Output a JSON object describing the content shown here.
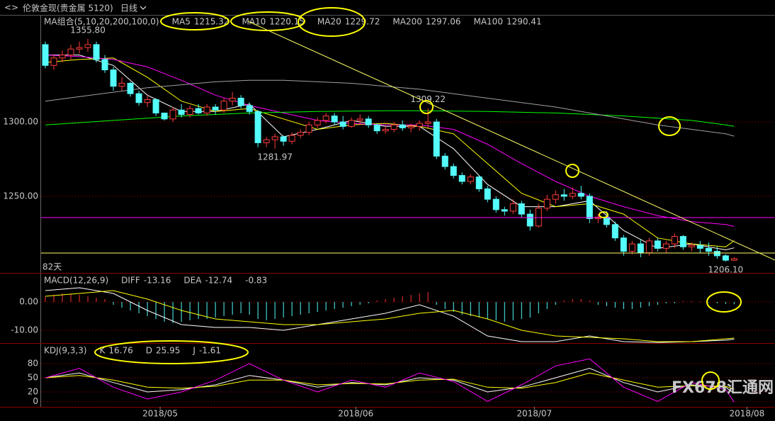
{
  "header": {
    "symbol": "伦敦金现(贵金属 5120)",
    "period": "日线"
  },
  "watermark": "FX678汇通网",
  "chart_data": [
    {
      "type": "candlestick",
      "indicator": "MA组合(5,10,20,200,100,0)",
      "period_label": "82天",
      "up_color": "#ff3c3c",
      "down_color": "#54fcfc",
      "xlim": [
        -0.5,
        85.8
      ],
      "ylim": [
        1198.5,
        1371.5
      ],
      "yticks": [
        {
          "value": 1300,
          "label": "1300.00"
        },
        {
          "value": 1250,
          "label": "1250.00"
        }
      ],
      "grid": true,
      "open": [
        1352,
        1338,
        1343,
        1345,
        1349,
        1350,
        1352,
        1342,
        1335,
        1324,
        1326,
        1319,
        1313,
        1315,
        1306,
        1302,
        1308,
        1305,
        1309,
        1306,
        1310,
        1308,
        1314,
        1316,
        1311,
        1307,
        1286,
        1288,
        1290,
        1287,
        1291,
        1293,
        1298,
        1301,
        1304,
        1300,
        1297,
        1301,
        1302,
        1298,
        1294,
        1295,
        1298,
        1296,
        1297,
        1299,
        1300,
        1277,
        1270,
        1264,
        1260,
        1263,
        1255,
        1248,
        1241,
        1240,
        1245,
        1238,
        1230,
        1242,
        1248,
        1251,
        1250,
        1252,
        1250,
        1235,
        1236,
        1231,
        1222,
        1213,
        1218,
        1212,
        1220,
        1215,
        1218,
        1223,
        1216,
        1217,
        1215,
        1213,
        1210,
        1207
      ],
      "high": [
        1354,
        1345,
        1348,
        1352,
        1354,
        1355.8,
        1354,
        1345,
        1337,
        1330,
        1327,
        1321,
        1318,
        1316,
        1306,
        1310,
        1312,
        1311,
        1312,
        1312,
        1312,
        1316,
        1320,
        1318,
        1313,
        1308,
        1290,
        1292,
        1291,
        1293,
        1295,
        1300,
        1303,
        1306,
        1306,
        1304,
        1303,
        1305,
        1304,
        1299,
        1297,
        1300,
        1301,
        1299,
        1301,
        1309.22,
        1302,
        1279,
        1272,
        1266,
        1265,
        1264,
        1257,
        1250,
        1243,
        1248,
        1247,
        1241,
        1245,
        1251,
        1254,
        1255,
        1256,
        1257,
        1252,
        1238,
        1240,
        1233,
        1224,
        1220,
        1221,
        1222,
        1222,
        1220,
        1225,
        1224,
        1219,
        1220,
        1219,
        1216,
        1211,
        1209
      ],
      "low": [
        1336,
        1335,
        1340,
        1342,
        1346,
        1347,
        1340,
        1333,
        1321,
        1321,
        1317,
        1311,
        1310,
        1304,
        1301,
        1300,
        1303,
        1303,
        1305,
        1304,
        1305,
        1306,
        1311,
        1309,
        1305,
        1283,
        1283,
        1281.97,
        1284,
        1285,
        1289,
        1291,
        1296,
        1299,
        1298,
        1295,
        1296,
        1298,
        1296,
        1292,
        1292,
        1293,
        1294,
        1293,
        1294,
        1296,
        1275,
        1268,
        1262,
        1258,
        1258,
        1253,
        1246,
        1239,
        1237,
        1238,
        1236,
        1227,
        1229,
        1240,
        1245,
        1247,
        1248,
        1248,
        1232,
        1232,
        1229,
        1220,
        1210,
        1211,
        1209,
        1210,
        1213,
        1212,
        1215,
        1214,
        1213,
        1212,
        1210,
        1208,
        1206.1,
        1206.5
      ],
      "close": [
        1338,
        1343,
        1345,
        1349,
        1350,
        1352,
        1342,
        1335,
        1324,
        1326,
        1319,
        1313,
        1315,
        1306,
        1302,
        1308,
        1305,
        1309,
        1306,
        1310,
        1308,
        1314,
        1316,
        1311,
        1307,
        1286,
        1288,
        1290,
        1287,
        1291,
        1293,
        1298,
        1301,
        1304,
        1300,
        1297,
        1301,
        1302,
        1298,
        1294,
        1295,
        1298,
        1296,
        1297,
        1299,
        1300,
        1277,
        1270,
        1264,
        1260,
        1263,
        1255,
        1248,
        1241,
        1240,
        1245,
        1238,
        1230,
        1242,
        1248,
        1251,
        1250,
        1252,
        1250,
        1235,
        1236,
        1231,
        1222,
        1213,
        1218,
        1212,
        1220,
        1215,
        1218,
        1223,
        1216,
        1217,
        1215,
        1213,
        1210,
        1207,
        1208
      ],
      "annotations": [
        {
          "x": 5,
          "y": 1355.8,
          "label": "1355.80"
        },
        {
          "x": 45,
          "y": 1309.22,
          "label": "1309.22"
        },
        {
          "x": 27,
          "y": 1281.97,
          "label": "1281.97"
        },
        {
          "x": 80,
          "y": 1206.1,
          "label": "1206.10"
        }
      ],
      "ma_x": [
        0,
        4,
        8,
        12,
        16,
        20,
        24,
        28,
        32,
        36,
        40,
        44,
        48,
        52,
        56,
        60,
        64,
        68,
        72,
        76,
        80,
        81
      ],
      "series": [
        {
          "name": "MA5",
          "color": "#ffffff",
          "latest": 1215.32,
          "values": [
            1345,
            1345,
            1338,
            1318,
            1307,
            1307,
            1312,
            1290,
            1295,
            1301,
            1297,
            1297,
            1282,
            1258,
            1243,
            1243,
            1247,
            1227,
            1215,
            1218,
            1214,
            1215.32
          ]
        },
        {
          "name": "MA10",
          "color": "#ffff00",
          "latest": 1220.15,
          "values": [
            1340,
            1342,
            1343,
            1330,
            1314,
            1307,
            1309,
            1302,
            1295,
            1298,
            1299,
            1297,
            1292,
            1272,
            1252,
            1243,
            1245,
            1238,
            1222,
            1218,
            1216,
            1220.15
          ]
        },
        {
          "name": "MA20",
          "color": "#ff00ff",
          "latest": 1229.72,
          "values": [
            1345,
            1344,
            1342,
            1337,
            1328,
            1318,
            1311,
            1306,
            1301,
            1299,
            1298,
            1298,
            1295,
            1285,
            1272,
            1260,
            1250,
            1243,
            1237,
            1233,
            1231,
            1229.72
          ]
        },
        {
          "name": "MA200",
          "color": "#00ff00",
          "latest": 1297.06,
          "values": [
            1298,
            1299.5,
            1301,
            1302.5,
            1304,
            1305,
            1306,
            1306.5,
            1307,
            1307.3,
            1307.5,
            1307.5,
            1307.3,
            1307,
            1306.5,
            1306,
            1305,
            1304,
            1302.5,
            1301,
            1298,
            1297.06
          ]
        },
        {
          "name": "MA100",
          "color": "#a0a0a0",
          "latest": 1290.41,
          "values": [
            1314,
            1317,
            1320,
            1323,
            1325,
            1327,
            1328,
            1328,
            1327,
            1326,
            1324,
            1322,
            1319,
            1316,
            1313,
            1310,
            1306,
            1302,
            1298,
            1295,
            1292,
            1290.41
          ]
        }
      ]
    },
    {
      "type": "macd",
      "indicator": "MACD(12,26,9)",
      "macd_latest": -0.83,
      "positive_color": "#ff3232",
      "negative_color": "#54fcfc",
      "xlim": [
        -0.5,
        85.8
      ],
      "ylim": [
        -14.5,
        9.75
      ],
      "yticks": [
        {
          "value": 0,
          "label": "0.00"
        },
        {
          "value": -10,
          "label": "-10.00"
        }
      ],
      "grid": true,
      "values": [
        2,
        2.5,
        3,
        3,
        2.5,
        2,
        1.5,
        1,
        -1,
        -2,
        -3,
        -4,
        -5,
        -6,
        -7,
        -7.5,
        -7,
        -6.5,
        -6,
        -6,
        -5.5,
        -5,
        -4.5,
        -4,
        -4.5,
        -6,
        -6.5,
        -6,
        -5.5,
        -5,
        -4.5,
        -4,
        -3.5,
        -3,
        -2.5,
        -2,
        -1.5,
        -1,
        -0.5,
        0.5,
        1,
        1.5,
        2,
        2.5,
        3,
        3.5,
        -1,
        -2.5,
        -3.5,
        -4.5,
        -5,
        -5.5,
        -6,
        -6.5,
        -7,
        -6.5,
        -6,
        -5.5,
        -4,
        -2.5,
        -1,
        0.5,
        1,
        1,
        0.5,
        -1,
        -1.5,
        -2,
        -2.5,
        -2.5,
        -2,
        -1.5,
        -1,
        -0.5,
        -0.5,
        0.3,
        0.3,
        0.2,
        -0.2,
        -0.5,
        -0.7,
        -0.83
      ],
      "ma_x": [
        0,
        4,
        8,
        12,
        16,
        20,
        24,
        28,
        32,
        36,
        40,
        44,
        48,
        52,
        56,
        60,
        64,
        68,
        72,
        76,
        80,
        81
      ],
      "series": [
        {
          "name": "DIFF",
          "color": "#ffffff",
          "latest": -13.16,
          "values": [
            4,
            5,
            3,
            -3,
            -8,
            -9,
            -9,
            -10,
            -8,
            -6,
            -4,
            -1,
            -5,
            -12,
            -14,
            -14,
            -12,
            -14,
            -14.3,
            -14,
            -13.5,
            -13.16
          ]
        },
        {
          "name": "DEA",
          "color": "#ffff00",
          "latest": -12.74,
          "values": [
            2,
            3,
            4,
            1,
            -3,
            -6,
            -7,
            -8,
            -8,
            -7,
            -6,
            -4,
            -3,
            -6,
            -10,
            -12,
            -12.5,
            -13,
            -14,
            -14,
            -13,
            -12.74
          ]
        }
      ]
    },
    {
      "type": "kdj",
      "indicator": "KDJ(9,3,3)",
      "xlim": [
        -0.5,
        85.8
      ],
      "ylim": [
        -11.5,
        120.5
      ],
      "yticks": [
        0,
        20,
        50,
        80
      ],
      "grid": true,
      "xticks": [
        {
          "value": 13.5,
          "label": "2018/05"
        },
        {
          "value": 36.5,
          "label": "2018/06"
        },
        {
          "value": 57.5,
          "label": "2018/07"
        },
        {
          "value": 82.5,
          "label": "2018/08"
        }
      ],
      "ma_x": [
        0,
        4,
        8,
        12,
        16,
        20,
        24,
        28,
        32,
        36,
        40,
        44,
        48,
        52,
        56,
        60,
        64,
        68,
        72,
        76,
        80,
        81
      ],
      "series": [
        {
          "name": "K",
          "color": "#ffffff",
          "latest": 16.76,
          "values": [
            50,
            60,
            40,
            20,
            25,
            35,
            55,
            45,
            30,
            40,
            35,
            50,
            45,
            20,
            30,
            50,
            70,
            40,
            20,
            35,
            30,
            16.76
          ]
        },
        {
          "name": "D",
          "color": "#ffff00",
          "latest": 25.95,
          "values": [
            50,
            55,
            45,
            30,
            28,
            32,
            45,
            45,
            35,
            38,
            37,
            45,
            47,
            30,
            28,
            40,
            60,
            45,
            30,
            33,
            32,
            25.95
          ]
        },
        {
          "name": "J",
          "color": "#ff00ff",
          "latest": -1.61,
          "values": [
            50,
            70,
            30,
            5,
            20,
            45,
            80,
            45,
            20,
            45,
            30,
            60,
            42,
            0,
            35,
            75,
            90,
            30,
            0,
            40,
            25,
            -1.61
          ]
        }
      ]
    }
  ]
}
